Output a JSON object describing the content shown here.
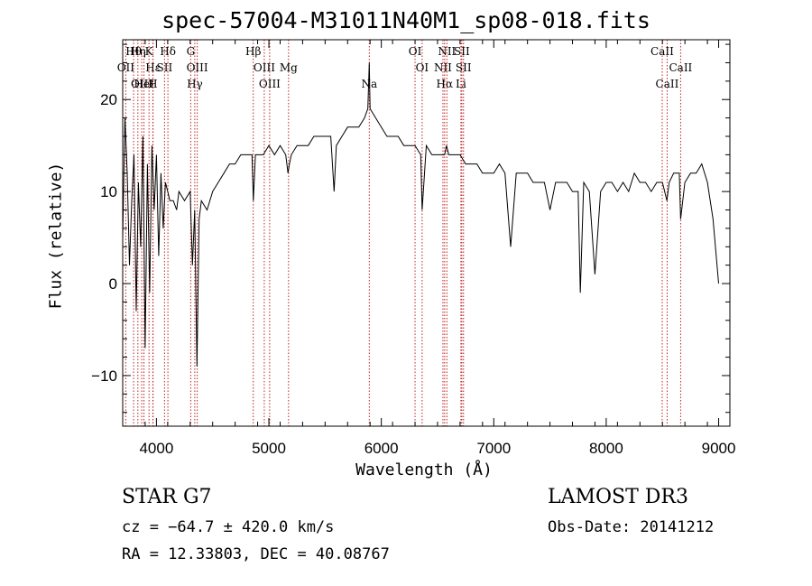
{
  "chart_data": {
    "type": "line",
    "title": "spec-57004-M31011N40M1_sp08-018.fits",
    "xlabel": "Wavelength (Å)",
    "ylabel": "Flux (relative)",
    "xlim": [
      3700,
      9100
    ],
    "ylim": [
      -15.5,
      26.5
    ],
    "x_ticks": [
      4000,
      5000,
      6000,
      7000,
      8000,
      9000
    ],
    "y_ticks": [
      -10,
      0,
      10,
      20
    ],
    "series": [
      {
        "name": "flux",
        "x": [
          3700,
          3720,
          3740,
          3760,
          3780,
          3800,
          3820,
          3840,
          3860,
          3880,
          3900,
          3920,
          3940,
          3960,
          3980,
          4000,
          4020,
          4040,
          4060,
          4080,
          4100,
          4120,
          4150,
          4180,
          4200,
          4250,
          4300,
          4320,
          4340,
          4360,
          4380,
          4400,
          4450,
          4500,
          4550,
          4600,
          4650,
          4700,
          4750,
          4800,
          4850,
          4862,
          4880,
          4900,
          4950,
          5000,
          5050,
          5100,
          5150,
          5170,
          5183,
          5200,
          5250,
          5300,
          5350,
          5400,
          5450,
          5500,
          5550,
          5580,
          5600,
          5650,
          5700,
          5750,
          5800,
          5850,
          5880,
          5893,
          5900,
          5950,
          6000,
          6050,
          6100,
          6150,
          6200,
          6250,
          6300,
          6350,
          6363,
          6400,
          6450,
          6500,
          6550,
          6563,
          6580,
          6600,
          6650,
          6700,
          6750,
          6800,
          6850,
          6900,
          6950,
          7000,
          7050,
          7100,
          7150,
          7200,
          7250,
          7300,
          7350,
          7400,
          7450,
          7500,
          7550,
          7600,
          7650,
          7700,
          7750,
          7770,
          7800,
          7850,
          7900,
          7950,
          8000,
          8050,
          8100,
          8150,
          8200,
          8250,
          8300,
          8350,
          8400,
          8450,
          8500,
          8540,
          8560,
          8600,
          8650,
          8662,
          8700,
          8750,
          8800,
          8850,
          8900,
          8950,
          9000
        ],
        "y": [
          5,
          18,
          12,
          2,
          9,
          14,
          -3,
          11,
          4,
          16,
          -7,
          13,
          -1,
          15,
          8,
          14,
          3,
          12,
          6,
          11,
          10,
          9,
          9,
          8,
          10,
          9,
          10,
          2,
          8,
          -9,
          7,
          9,
          8,
          10,
          11,
          12,
          13,
          13,
          14,
          14,
          14,
          9,
          14,
          14,
          14,
          15,
          14,
          15,
          14,
          12,
          13,
          14,
          15,
          15,
          15,
          16,
          16,
          16,
          16,
          10,
          15,
          16,
          17,
          17,
          17,
          18,
          19,
          24,
          19,
          18,
          17,
          16,
          16,
          16,
          15,
          15,
          15,
          14,
          8,
          15,
          14,
          14,
          14,
          14,
          15,
          14,
          14,
          14,
          13,
          13,
          13,
          12,
          12,
          12,
          13,
          12,
          4,
          12,
          12,
          12,
          11,
          11,
          11,
          8,
          11,
          11,
          11,
          10,
          10,
          -1,
          11,
          10,
          1,
          10,
          11,
          11,
          10,
          11,
          10,
          12,
          11,
          11,
          10,
          11,
          11,
          9,
          11,
          12,
          12,
          7,
          11,
          12,
          12,
          13,
          11,
          7,
          0
        ]
      }
    ],
    "line_ids": [
      {
        "label": "Hθ",
        "wavelength": 3797
      },
      {
        "label": "OII",
        "wavelength": 3727
      },
      {
        "label": "OIII",
        "wavelength": 3869
      },
      {
        "label": "K",
        "wavelength": 3934
      },
      {
        "label": "Hε",
        "wavelength": 3970
      },
      {
        "label": "HeI",
        "wavelength": 3889
      },
      {
        "label": "Hη",
        "wavelength": 3835
      },
      {
        "label": "SII",
        "wavelength": 4072
      },
      {
        "label": "H",
        "wavelength": 3968
      },
      {
        "label": "Hδ",
        "wavelength": 4102
      },
      {
        "label": "OIII",
        "wavelength": 4363
      },
      {
        "label": "Hγ",
        "wavelength": 4341
      },
      {
        "label": "G",
        "wavelength": 4305
      },
      {
        "label": "OIII",
        "wavelength": 4959
      },
      {
        "label": "OIII",
        "wavelength": 5007
      },
      {
        "label": "Hβ",
        "wavelength": 4861
      },
      {
        "label": "Mg",
        "wavelength": 5175
      },
      {
        "label": "Na",
        "wavelength": 5893
      },
      {
        "label": "OI",
        "wavelength": 6300
      },
      {
        "label": "OI",
        "wavelength": 6363
      },
      {
        "label": "Hα",
        "wavelength": 6563
      },
      {
        "label": "SII",
        "wavelength": 6716
      },
      {
        "label": "NII",
        "wavelength": 6548
      },
      {
        "label": "Li",
        "wavelength": 6708
      },
      {
        "label": "NII",
        "wavelength": 6583
      },
      {
        "label": "SII",
        "wavelength": 6731
      },
      {
        "label": "CaII",
        "wavelength": 8542
      },
      {
        "label": "CaII",
        "wavelength": 8498
      },
      {
        "label": "CaII",
        "wavelength": 8662
      }
    ]
  },
  "info": {
    "class": "STAR    G7",
    "cz": "cz = −64.7 ± 420.0 km/s",
    "radec": "RA =  12.33803, DEC =  40.08767",
    "survey": "LAMOST DR3",
    "obs_date": "Obs-Date: 20141212"
  }
}
